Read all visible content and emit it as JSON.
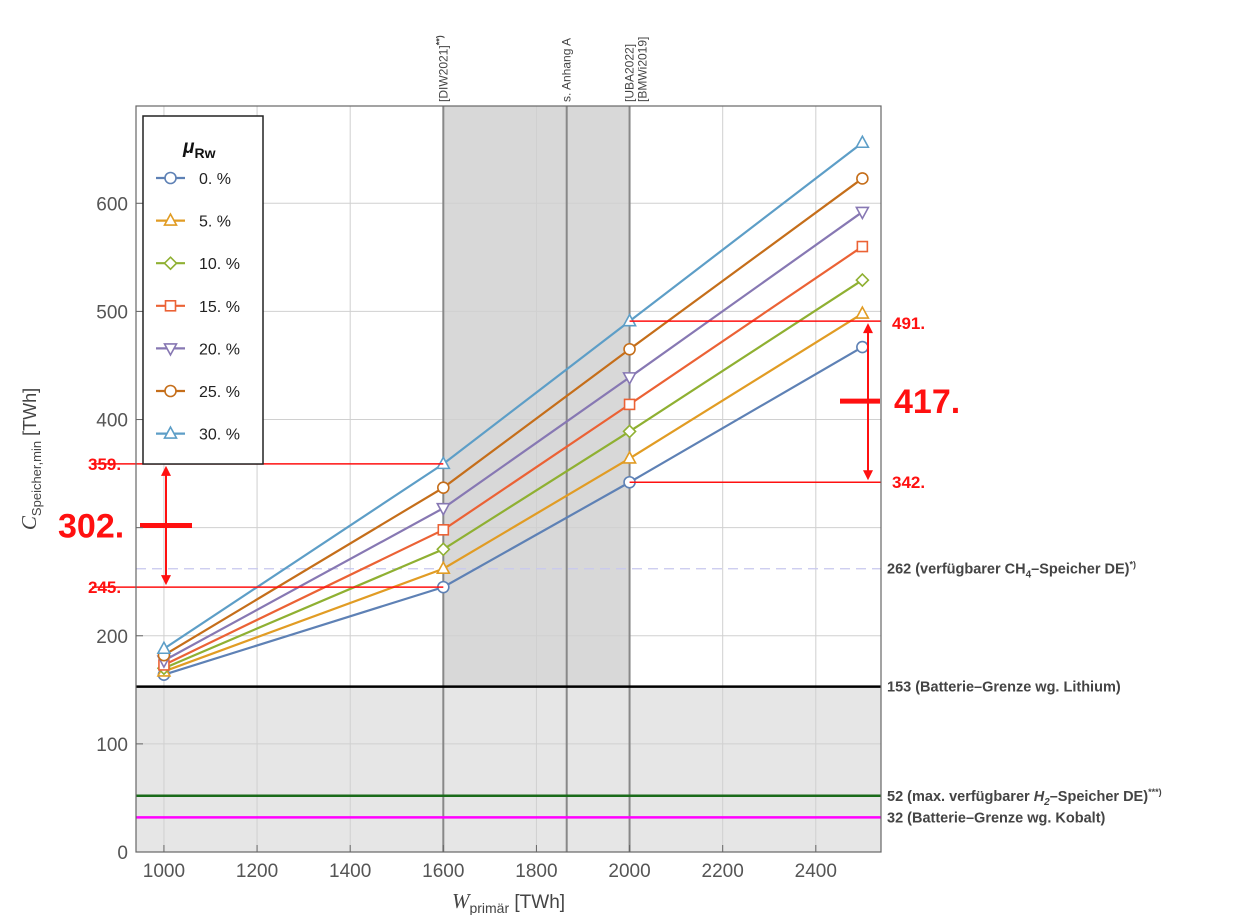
{
  "chart_data": {
    "type": "line",
    "xlabel": {
      "main": "W",
      "sub": "primär",
      "unit": " [TWh]"
    },
    "ylabel": {
      "main": "C",
      "sub": "Speicher,min",
      "unit": " [TWh]"
    },
    "xlim": [
      940,
      2540
    ],
    "ylim": [
      0,
      690
    ],
    "xticks": [
      1000,
      1200,
      1400,
      1600,
      1800,
      2000,
      2200,
      2400
    ],
    "yticks": [
      0,
      100,
      200,
      300,
      400,
      500,
      600
    ],
    "yticklabels": [
      "0",
      "100",
      "200",
      "",
      "400",
      "500",
      "600"
    ],
    "grid": true,
    "x": [
      1000,
      1600,
      2000,
      2500
    ],
    "legend": {
      "title_main": "μ",
      "title_sub": "Rw",
      "placement": "top-left"
    },
    "series": [
      {
        "name": "0. %",
        "color": "#5e81b5",
        "marker": "circle",
        "values": [
          164,
          245,
          342,
          467
        ]
      },
      {
        "name": "5. %",
        "color": "#e19c24",
        "marker": "triangle-up",
        "values": [
          167,
          262,
          364,
          498
        ]
      },
      {
        "name": "10. %",
        "color": "#8fb032",
        "marker": "diamond",
        "values": [
          170,
          280,
          389,
          529
        ]
      },
      {
        "name": "15. %",
        "color": "#eb6235",
        "marker": "square",
        "values": [
          173,
          298,
          414,
          560
        ]
      },
      {
        "name": "20. %",
        "color": "#8778b3",
        "marker": "triangle-down",
        "values": [
          177,
          318,
          439,
          592
        ]
      },
      {
        "name": "25. %",
        "color": "#c56e1a",
        "marker": "circle",
        "values": [
          182,
          337,
          465,
          623
        ]
      },
      {
        "name": "30. %",
        "color": "#5d9ec7",
        "marker": "triangle-up",
        "values": [
          188,
          359,
          491,
          656
        ]
      }
    ],
    "shaded_regions": [
      {
        "x": [
          1600,
          2000
        ],
        "color": "#d8d8d8"
      },
      {
        "y": [
          0,
          153
        ],
        "color": "#e6e6e6"
      }
    ],
    "vertical_refs": [
      {
        "x": 1600,
        "label_main": "[DIW2021]",
        "label_sup": "**)"
      },
      {
        "x": 1865,
        "label_main": "s. Anhang A",
        "label_sup": ""
      },
      {
        "x": 2000,
        "label_main": "[UBA2022]",
        "label_sup": "",
        "label2": "[BMWi2019]"
      }
    ],
    "reference_lines": [
      {
        "y": 262,
        "color": "#c8c8ee",
        "style": "dashed",
        "parts": [
          "262 (verfügbarer CH",
          "4",
          "–Speicher DE)",
          "*)"
        ]
      },
      {
        "y": 153,
        "color": "#000000",
        "style": "solid",
        "parts": [
          "153 (Batterie–Grenze wg. Lithium)",
          "",
          "",
          ""
        ]
      },
      {
        "y": 52,
        "color": "#1a6b1a",
        "style": "solid",
        "parts": [
          "52 (max. verfügbarer ",
          "H2",
          "–Speicher DE)",
          "***)"
        ]
      },
      {
        "y": 32,
        "color": "#ff00ff",
        "style": "solid",
        "parts": [
          "32 (Batterie–Grenze wg. Kobalt)",
          "",
          "",
          ""
        ]
      }
    ],
    "annotations": {
      "left": {
        "x": 1600,
        "high": 359,
        "low": 245,
        "mid": 302,
        "high_label": "359.",
        "low_label": "245.",
        "mid_label": "302."
      },
      "right": {
        "x": 2000,
        "high": 491,
        "low": 342,
        "mid": 417,
        "high_label": "491.",
        "low_label": "342.",
        "mid_label": "417."
      }
    }
  }
}
